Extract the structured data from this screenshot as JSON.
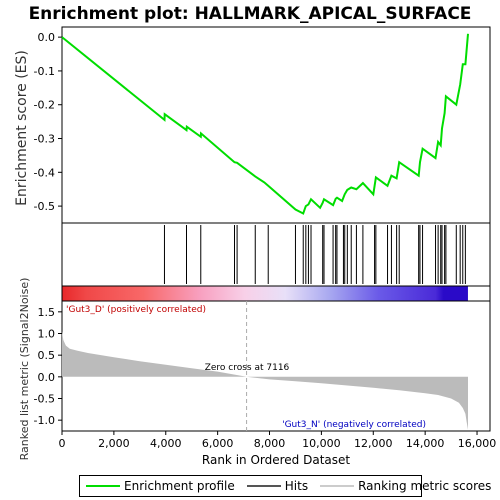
{
  "title": "Enrichment plot: HALLMARK_APICAL_SURFACE",
  "ylabel_top": "Enrichment score (ES)",
  "ylabel_bottom": "Ranked list metric (Signal2Noise)",
  "xlabel": "Rank in Ordered Dataset",
  "pos_label": "'Gut3_D' (positively correlated)",
  "neg_label": "'Gut3_N' (negatively correlated)",
  "zero_cross_label": "Zero cross at 7116",
  "legend": {
    "items": [
      {
        "label": "Enrichment profile",
        "color": "#00dd00"
      },
      {
        "label": "Hits",
        "color": "#555555"
      },
      {
        "label": "Ranking metric scores",
        "color": "#cccccc"
      }
    ]
  },
  "colors": {
    "profile": "#00dd00",
    "hits": "#000000",
    "metric_fill": "#bbbbbb",
    "zero_cross_line": "#aaaaaa"
  },
  "chart_data": {
    "type": "line",
    "title": "Enrichment plot: HALLMARK_APICAL_SURFACE",
    "xlabel": "Rank in Ordered Dataset",
    "xlim": [
      0,
      16500
    ],
    "x_ticks": [
      0,
      2000,
      4000,
      6000,
      8000,
      10000,
      12000,
      14000,
      16000
    ],
    "x_tick_labels": [
      "0",
      "2,000",
      "4,000",
      "6,000",
      "8,000",
      "10,000",
      "12,000",
      "14,000",
      "16,000"
    ],
    "n_genes": 15650,
    "zero_cross": 7116,
    "es_panel": {
      "ylabel": "Enrichment score (ES)",
      "ylim": [
        -0.55,
        0.03
      ],
      "y_ticks": [
        0.0,
        -0.1,
        -0.2,
        -0.3,
        -0.4,
        -0.5
      ],
      "y_tick_labels": [
        "0.0",
        "-0.1",
        "-0.2",
        "-0.3",
        "-0.4",
        "-0.5"
      ],
      "grid": false,
      "series": [
        {
          "name": "Enrichment profile",
          "x": [
            0,
            3950,
            3960,
            4800,
            4810,
            5350,
            5360,
            6650,
            6750,
            7450,
            7800,
            7950,
            9000,
            9300,
            9400,
            9500,
            9600,
            9950,
            10050,
            10100,
            10450,
            10550,
            10600,
            10800,
            10900,
            11000,
            11150,
            11350,
            11600,
            12000,
            12100,
            12550,
            12700,
            12900,
            13000,
            13750,
            13800,
            13900,
            14400,
            14500,
            14600,
            14650,
            14750,
            14800,
            15200,
            15350,
            15450,
            15550,
            15650
          ],
          "y": [
            0.0,
            -0.245,
            -0.228,
            -0.275,
            -0.265,
            -0.295,
            -0.285,
            -0.37,
            -0.372,
            -0.412,
            -0.43,
            -0.44,
            -0.51,
            -0.522,
            -0.5,
            -0.495,
            -0.48,
            -0.505,
            -0.49,
            -0.48,
            -0.497,
            -0.478,
            -0.475,
            -0.485,
            -0.465,
            -0.452,
            -0.445,
            -0.45,
            -0.432,
            -0.465,
            -0.415,
            -0.44,
            -0.41,
            -0.418,
            -0.37,
            -0.41,
            -0.37,
            -0.33,
            -0.358,
            -0.31,
            -0.32,
            -0.27,
            -0.225,
            -0.175,
            -0.2,
            -0.14,
            -0.08,
            -0.08,
            0.01
          ]
        }
      ]
    },
    "hits": [
      3950,
      4800,
      5350,
      6650,
      6750,
      7450,
      7950,
      9000,
      9300,
      9400,
      9500,
      9600,
      10050,
      10100,
      10450,
      10550,
      10600,
      10850,
      10900,
      11000,
      11150,
      11350,
      11600,
      12050,
      12100,
      12550,
      12700,
      12900,
      13000,
      13750,
      13800,
      13900,
      14400,
      14500,
      14600,
      14650,
      14750,
      14800,
      15200,
      15350,
      15450,
      15550
    ],
    "metric_panel": {
      "ylabel": "Ranked list metric (Signal2Noise)",
      "ylim": [
        -1.25,
        1.75
      ],
      "y_ticks": [
        1.5,
        1.0,
        0.5,
        0.0,
        -0.5,
        -1.0
      ],
      "y_tick_labels": [
        "1.5",
        "1.0",
        "0.5",
        "0.0",
        "-0.5",
        "-1.0"
      ],
      "series": [
        {
          "name": "Ranking metric scores",
          "x": [
            0,
            50,
            150,
            300,
            600,
            1000,
            2000,
            3000,
            4000,
            5000,
            6000,
            7116,
            8000,
            9000,
            10000,
            11000,
            12000,
            13000,
            14000,
            14500,
            15000,
            15300,
            15450,
            15550,
            15600,
            15650
          ],
          "y": [
            1.05,
            0.85,
            0.72,
            0.65,
            0.6,
            0.55,
            0.45,
            0.36,
            0.28,
            0.2,
            0.12,
            0.0,
            -0.06,
            -0.1,
            -0.15,
            -0.2,
            -0.25,
            -0.31,
            -0.38,
            -0.42,
            -0.5,
            -0.6,
            -0.72,
            -0.85,
            -1.05,
            -1.22
          ]
        }
      ]
    }
  }
}
